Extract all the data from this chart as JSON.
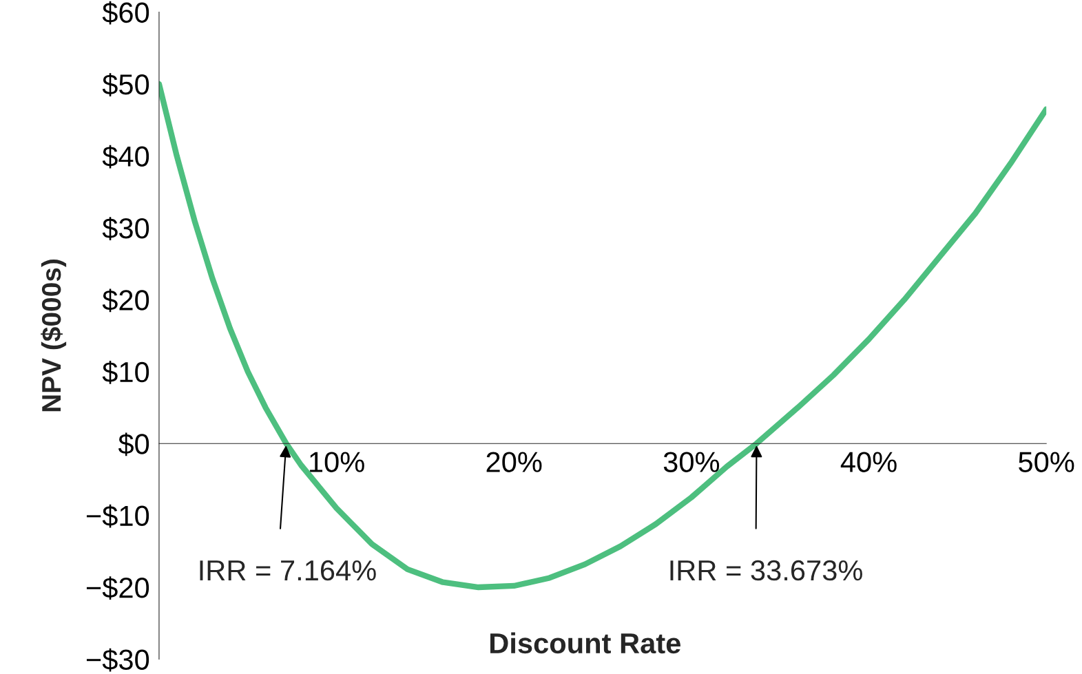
{
  "chart_data": {
    "type": "line",
    "xlabel": "Discount Rate",
    "ylabel": "NPV ($000s)",
    "x": [
      0,
      1,
      2,
      3,
      4,
      5,
      6,
      7.164,
      8,
      10,
      12,
      14,
      16,
      18,
      20,
      22,
      24,
      26,
      28,
      30,
      32,
      33.673,
      36,
      38,
      40,
      42,
      44,
      46,
      48,
      50
    ],
    "series": [
      {
        "color": "#4dbf7f",
        "values": [
          50,
          40,
          31,
          23,
          16,
          10,
          5,
          0,
          -3,
          -9,
          -14,
          -17.5,
          -19.3,
          -20,
          -19.8,
          -18.7,
          -16.8,
          -14.3,
          -11.2,
          -7.5,
          -3.2,
          0,
          5,
          9.5,
          14.5,
          20,
          26,
          32,
          39,
          46.5
        ]
      }
    ],
    "xlim": [
      0,
      50
    ],
    "ylim": [
      -30,
      60
    ],
    "xticks": [
      {
        "value": 10,
        "label": "10%"
      },
      {
        "value": 20,
        "label": "20%"
      },
      {
        "value": 30,
        "label": "30%"
      },
      {
        "value": 40,
        "label": "40%"
      },
      {
        "value": 50,
        "label": "50%"
      }
    ],
    "yticks": [
      {
        "value": -30,
        "label": "−$30"
      },
      {
        "value": -20,
        "label": "−$20"
      },
      {
        "value": -10,
        "label": "−$10"
      },
      {
        "value": 0,
        "label": "$0"
      },
      {
        "value": 10,
        "label": "$10"
      },
      {
        "value": 20,
        "label": "$20"
      },
      {
        "value": 30,
        "label": "$30"
      },
      {
        "value": 40,
        "label": "$40"
      },
      {
        "value": 50,
        "label": "$50"
      },
      {
        "value": 60,
        "label": "$60"
      }
    ],
    "annotations": [
      {
        "text": "IRR = 7.164%",
        "x": 7.164,
        "y": 0
      },
      {
        "text": "IRR = 33.673%",
        "x": 33.673,
        "y": 0
      }
    ],
    "grid": false,
    "legend": false,
    "marker": "none",
    "line_style": "solid"
  }
}
